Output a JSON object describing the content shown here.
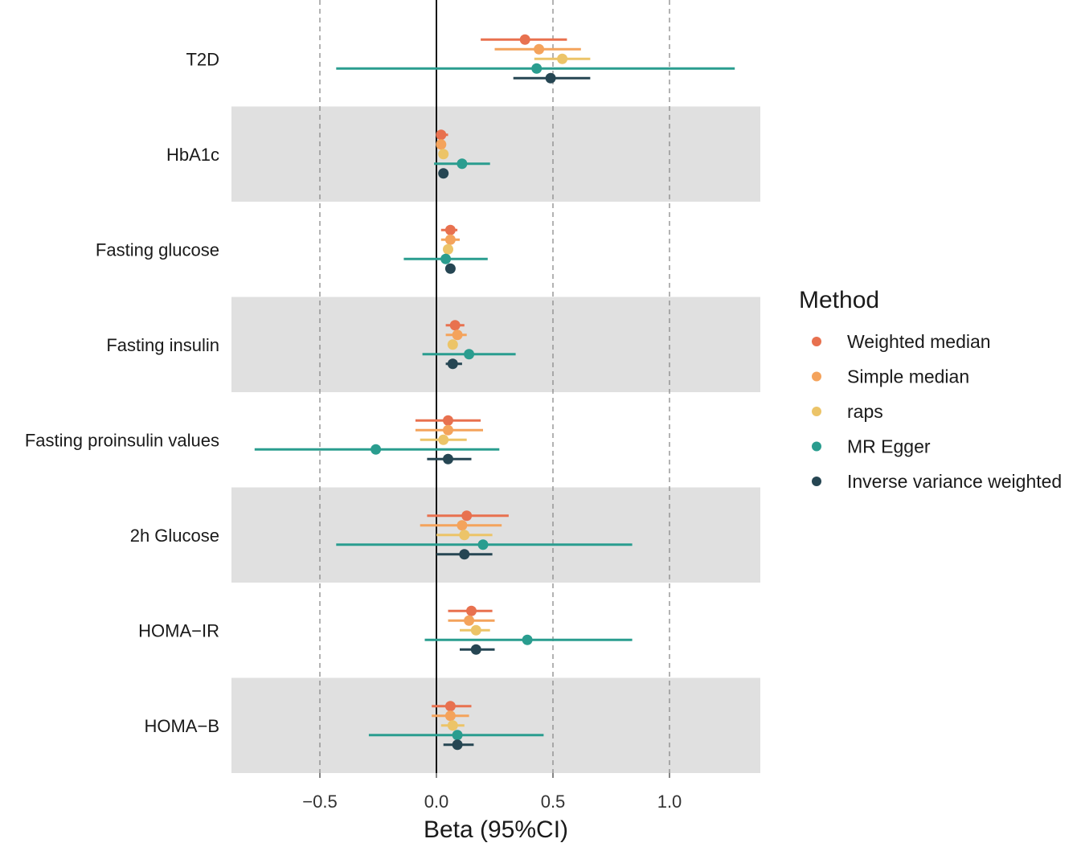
{
  "chart_data": {
    "type": "forest",
    "xlabel": "Beta (95%CI)",
    "xlim": [
      -0.88,
      1.38
    ],
    "xticks": [
      -0.5,
      0.0,
      0.5,
      1.0
    ],
    "xtick_labels": [
      "−0.5",
      "0.0",
      "0.5",
      "1.0"
    ],
    "reference_line": 0,
    "dashed_lines": [
      -0.5,
      0.5,
      1.0
    ],
    "categories": [
      "T2D",
      "HbA1c",
      "Fasting glucose",
      "Fasting insulin",
      "Fasting proinsulin values",
      "2h Glucose",
      "HOMA−IR",
      "HOMA−B"
    ],
    "legend_title": "Method",
    "series": [
      {
        "name": "Weighted median",
        "color": "#e8714f",
        "estimates": [
          0.38,
          0.02,
          0.06,
          0.08,
          0.05,
          0.13,
          0.15,
          0.06
        ],
        "lower": [
          0.19,
          0.0,
          0.02,
          0.04,
          -0.09,
          -0.04,
          0.05,
          -0.02
        ],
        "upper": [
          0.56,
          0.05,
          0.09,
          0.12,
          0.19,
          0.31,
          0.24,
          0.15
        ]
      },
      {
        "name": "Simple median",
        "color": "#f4a35c",
        "estimates": [
          0.44,
          0.02,
          0.06,
          0.09,
          0.05,
          0.11,
          0.14,
          0.06
        ],
        "lower": [
          0.25,
          0.0,
          0.02,
          0.04,
          -0.09,
          -0.07,
          0.05,
          -0.02
        ],
        "upper": [
          0.62,
          0.04,
          0.1,
          0.13,
          0.2,
          0.28,
          0.25,
          0.14
        ]
      },
      {
        "name": "raps",
        "color": "#ecc468",
        "estimates": [
          0.54,
          0.03,
          0.05,
          0.07,
          0.03,
          0.12,
          0.17,
          0.07
        ],
        "lower": [
          0.42,
          0.01,
          0.03,
          0.05,
          -0.07,
          0.0,
          0.1,
          0.02
        ],
        "upper": [
          0.66,
          0.04,
          0.07,
          0.09,
          0.13,
          0.24,
          0.23,
          0.12
        ]
      },
      {
        "name": "MR Egger",
        "color": "#2a9d8f",
        "estimates": [
          0.43,
          0.11,
          0.04,
          0.14,
          -0.26,
          0.2,
          0.39,
          0.09
        ],
        "lower": [
          -0.43,
          -0.01,
          -0.14,
          -0.06,
          -0.78,
          -0.43,
          -0.05,
          -0.29
        ],
        "upper": [
          1.28,
          0.23,
          0.22,
          0.34,
          0.27,
          0.84,
          0.84,
          0.46
        ]
      },
      {
        "name": "Inverse variance weighted",
        "color": "#264653",
        "estimates": [
          0.49,
          0.03,
          0.06,
          0.07,
          0.05,
          0.12,
          0.17,
          0.09
        ],
        "lower": [
          0.33,
          0.03,
          0.04,
          0.04,
          -0.04,
          0.0,
          0.1,
          0.03
        ],
        "upper": [
          0.66,
          0.03,
          0.08,
          0.11,
          0.15,
          0.24,
          0.25,
          0.16
        ]
      }
    ]
  }
}
